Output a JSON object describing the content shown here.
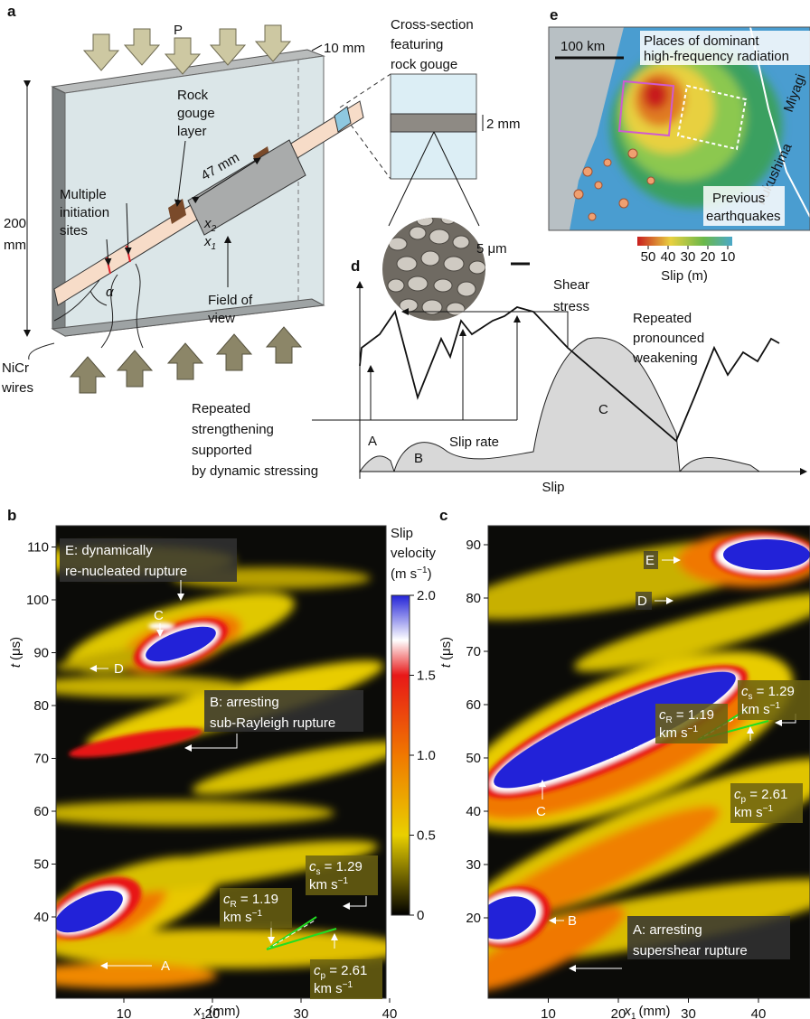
{
  "panel_a": {
    "label": "a",
    "load": "P",
    "thickness": "10 mm",
    "height": [
      "200",
      "mm"
    ],
    "gouge_layer": [
      "Rock",
      "gouge",
      "layer"
    ],
    "length": "47 mm",
    "initiation": [
      "Multiple",
      "initiation",
      "sites"
    ],
    "axis_x2": {
      "symbol": "x",
      "sub": "2"
    },
    "axis_x1": {
      "symbol": "x",
      "sub": "1"
    },
    "angle": "α",
    "field_of_view": [
      "Field of",
      "view"
    ],
    "wires": [
      "NiCr",
      "wires"
    ],
    "cross_section_title": [
      "Cross-section",
      "featuring",
      "rock gouge"
    ],
    "gouge_thickness": "2 mm",
    "grain_scale": "5 μm"
  },
  "panel_e": {
    "label": "e",
    "scale": "100 km",
    "hf_radiation": [
      "Places of dominant",
      "high-frequency radiation"
    ],
    "region_1": "Miyagi",
    "region_2": "Fukushima",
    "previous": [
      "Previous",
      "earthquakes"
    ],
    "colorbar_ticks": [
      50,
      40,
      30,
      20,
      10
    ],
    "colorbar_title": "Slip (m)"
  },
  "panel_d": {
    "label": "d",
    "shear_stress": [
      "Shear",
      "stress"
    ],
    "weakening": [
      "Repeated",
      "pronounced",
      "weakening"
    ],
    "strengthening": [
      "Repeated",
      "strengthening",
      "supported",
      "by dynamic stressing"
    ],
    "peaks": [
      "A",
      "B",
      "C"
    ],
    "slip_rate": "Slip rate",
    "x_label": "Slip"
  },
  "panel_b": {
    "label": "b",
    "y_label": {
      "symbol": "t",
      "unit": "(μs)"
    },
    "x_label": {
      "symbol": "x",
      "sub": "1",
      "unit": "(mm)"
    },
    "xticks": [
      10,
      20,
      30,
      40
    ],
    "yticks": [
      110,
      100,
      90,
      80,
      70,
      60,
      50,
      40
    ],
    "colorbar_title": [
      "Slip",
      "velocity",
      {
        "open": "(m s",
        "sup": "−1",
        "close": ")"
      }
    ],
    "colorbar_ticks": [
      {
        "value": 2,
        "label": "2.0"
      },
      1.5,
      {
        "value": 1,
        "label": "1.0"
      },
      0.5,
      0
    ],
    "event_e": [
      "E: dynamically",
      "re-nucleated rupture"
    ],
    "event_c": "C",
    "event_d": "D",
    "event_b": [
      "B: arresting",
      "sub-Rayleigh rupture"
    ],
    "event_a": "A",
    "c_s": {
      "symbol": "c",
      "sub": "s",
      "value": " = 1.29",
      "unit": "km s",
      "sup": "−1"
    },
    "c_r": {
      "symbol": "c",
      "sub": "R",
      "value": " = 1.19",
      "unit": "km s",
      "sup": "−1"
    },
    "c_p": {
      "symbol": "c",
      "sub": "p",
      "value": " = 2.61",
      "unit": "km s",
      "sup": "−1"
    }
  },
  "panel_c": {
    "label": "c",
    "y_label": {
      "symbol": "t",
      "unit": "(μs)"
    },
    "x_label": {
      "symbol": "x",
      "sub": "1",
      "unit": "(mm)"
    },
    "xticks": [
      10,
      20,
      30,
      40
    ],
    "yticks": [
      90,
      80,
      70,
      60,
      50,
      40,
      30,
      20
    ],
    "event_e": "E",
    "event_d": "D",
    "event_c": "C",
    "event_b": "B",
    "event_a": [
      "A: arresting",
      "supershear rupture"
    ],
    "c_s": {
      "symbol": "c",
      "sub": "s",
      "value": " = 1.29",
      "unit": "km s",
      "sup": "−1"
    },
    "c_r": {
      "symbol": "c",
      "sub": "R",
      "value": " = 1.19",
      "unit": "km s",
      "sup": "−1"
    },
    "c_p": {
      "symbol": "c",
      "sub": "p",
      "value": " = 2.61",
      "unit": "km s",
      "sup": "−1"
    }
  }
}
